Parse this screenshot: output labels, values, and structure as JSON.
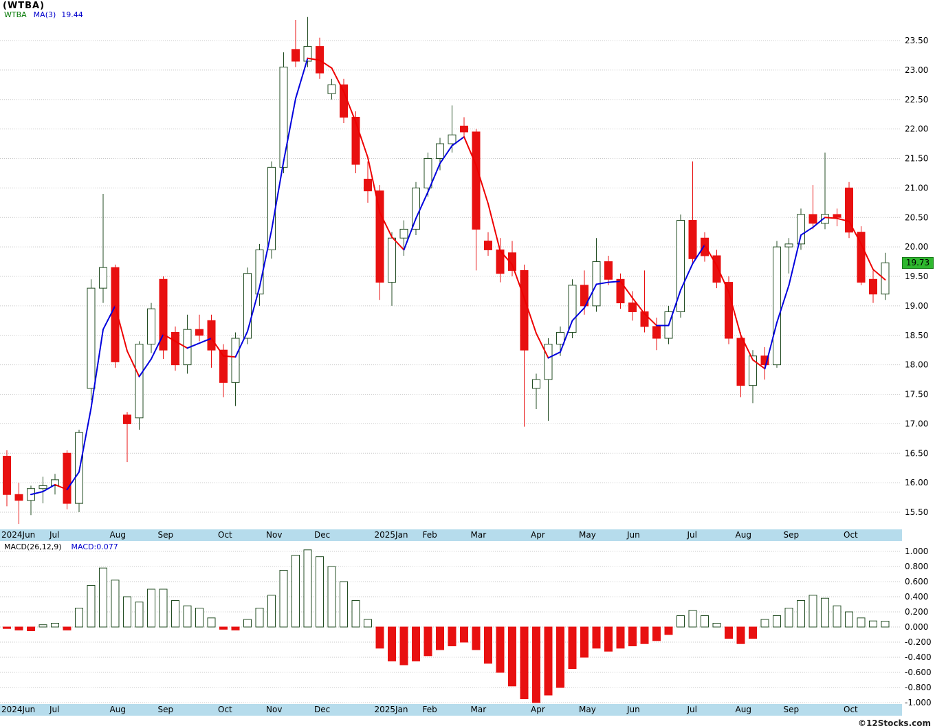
{
  "title": "(WTBA)",
  "legend": {
    "symbol": "WTBA",
    "ma": "MA(3)",
    "ma_value": "19.44"
  },
  "price_badge": "19.73",
  "macd_legend": {
    "label": "MACD(26,12,9)",
    "value": "MACD:0.077"
  },
  "footer": {
    "text": "©12Stocks.com"
  },
  "colors": {
    "up_outline": "#234d23",
    "down": "#e81010",
    "ma_rising": "#0000dd",
    "ma_falling": "#ee0000",
    "grid": "#c8c8c8",
    "axis_band": "#b6dcec",
    "badge_bg": "#2eb82e",
    "legend_symbol": "#007700",
    "legend_value": "#0000cc"
  },
  "chart_data": {
    "type": "candlestick",
    "symbol": "WTBA",
    "interval": "weekly",
    "ma_period": 3,
    "ma_last": 19.44,
    "last_close": 19.73,
    "macd_params": "26,12,9",
    "macd_last": 0.077,
    "price_axis_ticks": [
      23.5,
      23.0,
      22.5,
      22.0,
      21.5,
      21.0,
      20.5,
      20.0,
      19.5,
      19.0,
      18.5,
      18.0,
      17.5,
      17.0,
      16.5,
      16.0,
      15.5
    ],
    "macd_axis_ticks": [
      1.0,
      0.8,
      0.6,
      0.4,
      0.2,
      0.0,
      -0.2,
      -0.4,
      -0.6,
      -0.8,
      -1.0
    ],
    "months": [
      {
        "label": "2024Jun",
        "week": 0
      },
      {
        "label": "Jul",
        "week": 4
      },
      {
        "label": "Aug",
        "week": 9
      },
      {
        "label": "Sep",
        "week": 13
      },
      {
        "label": "Oct",
        "week": 18
      },
      {
        "label": "Nov",
        "week": 22
      },
      {
        "label": "Dec",
        "week": 26
      },
      {
        "label": "2025Jan",
        "week": 31
      },
      {
        "label": "Feb",
        "week": 35
      },
      {
        "label": "Mar",
        "week": 39
      },
      {
        "label": "Apr",
        "week": 44
      },
      {
        "label": "May",
        "week": 48
      },
      {
        "label": "Jun",
        "week": 52
      },
      {
        "label": "Jul",
        "week": 57
      },
      {
        "label": "Aug",
        "week": 61
      },
      {
        "label": "Sep",
        "week": 65
      },
      {
        "label": "Oct",
        "week": 70
      }
    ],
    "candles": [
      [
        16.45,
        16.55,
        15.6,
        15.8
      ],
      [
        15.8,
        16.0,
        15.3,
        15.7
      ],
      [
        15.7,
        15.95,
        15.45,
        15.9
      ],
      [
        15.9,
        16.1,
        15.65,
        15.95
      ],
      [
        15.95,
        16.15,
        15.8,
        16.05
      ],
      [
        16.5,
        16.55,
        15.55,
        15.65
      ],
      [
        15.65,
        16.9,
        15.5,
        16.85
      ],
      [
        17.6,
        19.45,
        17.4,
        19.3
      ],
      [
        19.3,
        20.9,
        19.05,
        19.65
      ],
      [
        19.65,
        19.7,
        17.95,
        18.05
      ],
      [
        17.15,
        17.2,
        16.35,
        17.0
      ],
      [
        17.1,
        18.4,
        16.9,
        18.35
      ],
      [
        18.35,
        19.05,
        18.2,
        18.95
      ],
      [
        19.45,
        19.5,
        18.1,
        18.25
      ],
      [
        18.55,
        18.65,
        17.9,
        18.0
      ],
      [
        18.0,
        18.85,
        17.85,
        18.6
      ],
      [
        18.6,
        18.85,
        18.4,
        18.5
      ],
      [
        18.75,
        18.85,
        17.95,
        18.25
      ],
      [
        18.25,
        18.35,
        17.45,
        17.7
      ],
      [
        17.7,
        18.55,
        17.3,
        18.45
      ],
      [
        18.45,
        19.65,
        18.35,
        19.55
      ],
      [
        19.2,
        20.05,
        19.0,
        19.95
      ],
      [
        19.95,
        21.45,
        19.8,
        21.35
      ],
      [
        21.35,
        23.3,
        21.25,
        23.05
      ],
      [
        23.35,
        23.85,
        23.05,
        23.15
      ],
      [
        23.15,
        23.9,
        23.05,
        23.4
      ],
      [
        23.4,
        23.55,
        22.85,
        22.95
      ],
      [
        22.6,
        22.85,
        22.5,
        22.75
      ],
      [
        22.75,
        22.85,
        22.1,
        22.2
      ],
      [
        22.2,
        22.3,
        21.25,
        21.4
      ],
      [
        21.15,
        21.45,
        20.75,
        20.95
      ],
      [
        20.95,
        21.05,
        19.1,
        19.4
      ],
      [
        19.4,
        20.25,
        19.0,
        20.15
      ],
      [
        20.15,
        20.45,
        19.85,
        20.3
      ],
      [
        20.3,
        21.1,
        20.2,
        21.0
      ],
      [
        21.0,
        21.6,
        20.85,
        21.5
      ],
      [
        21.5,
        21.85,
        21.3,
        21.75
      ],
      [
        21.75,
        22.4,
        21.6,
        21.9
      ],
      [
        22.05,
        22.2,
        21.85,
        21.95
      ],
      [
        21.95,
        22.0,
        19.6,
        20.3
      ],
      [
        20.1,
        20.25,
        19.85,
        19.95
      ],
      [
        19.95,
        20.15,
        19.4,
        19.55
      ],
      [
        19.9,
        20.1,
        19.5,
        19.6
      ],
      [
        19.6,
        19.7,
        16.95,
        18.25
      ],
      [
        17.6,
        17.85,
        17.25,
        17.75
      ],
      [
        17.75,
        18.45,
        17.05,
        18.35
      ],
      [
        18.35,
        18.65,
        18.15,
        18.55
      ],
      [
        18.55,
        19.45,
        18.45,
        19.35
      ],
      [
        19.35,
        19.6,
        18.85,
        19.0
      ],
      [
        19.0,
        20.15,
        18.9,
        19.75
      ],
      [
        19.75,
        19.85,
        19.35,
        19.45
      ],
      [
        19.45,
        19.55,
        18.95,
        19.05
      ],
      [
        19.05,
        19.25,
        18.75,
        18.9
      ],
      [
        18.9,
        19.6,
        18.55,
        18.65
      ],
      [
        18.65,
        18.8,
        18.25,
        18.45
      ],
      [
        18.45,
        19.0,
        18.35,
        18.9
      ],
      [
        18.9,
        20.55,
        18.8,
        20.45
      ],
      [
        20.45,
        21.45,
        19.7,
        19.8
      ],
      [
        20.15,
        20.25,
        19.75,
        19.85
      ],
      [
        19.85,
        19.95,
        19.3,
        19.4
      ],
      [
        19.4,
        19.5,
        18.35,
        18.45
      ],
      [
        18.45,
        18.55,
        17.45,
        17.65
      ],
      [
        17.65,
        18.25,
        17.35,
        18.15
      ],
      [
        18.15,
        18.3,
        17.75,
        18.0
      ],
      [
        18.0,
        20.1,
        17.95,
        20.0
      ],
      [
        20.0,
        20.15,
        19.55,
        20.05
      ],
      [
        20.05,
        20.65,
        19.95,
        20.55
      ],
      [
        20.55,
        21.05,
        20.3,
        20.4
      ],
      [
        20.4,
        21.6,
        20.3,
        20.55
      ],
      [
        20.55,
        20.65,
        20.35,
        20.5
      ],
      [
        21.0,
        21.1,
        20.15,
        20.25
      ],
      [
        20.25,
        20.35,
        19.35,
        19.4
      ],
      [
        19.45,
        19.6,
        19.05,
        19.2
      ],
      [
        19.2,
        19.9,
        19.1,
        19.73
      ]
    ],
    "macd_hist": [
      -0.02,
      -0.04,
      -0.05,
      0.03,
      0.05,
      -0.04,
      0.25,
      0.55,
      0.78,
      0.62,
      0.4,
      0.33,
      0.5,
      0.5,
      0.35,
      0.28,
      0.25,
      0.12,
      -0.03,
      -0.04,
      0.1,
      0.25,
      0.42,
      0.75,
      0.95,
      1.02,
      0.93,
      0.8,
      0.6,
      0.35,
      0.1,
      -0.28,
      -0.45,
      -0.5,
      -0.45,
      -0.38,
      -0.3,
      -0.25,
      -0.2,
      -0.3,
      -0.48,
      -0.6,
      -0.78,
      -0.95,
      -1.0,
      -0.9,
      -0.8,
      -0.55,
      -0.4,
      -0.28,
      -0.32,
      -0.28,
      -0.25,
      -0.22,
      -0.18,
      -0.1,
      0.15,
      0.22,
      0.15,
      0.05,
      -0.15,
      -0.22,
      -0.15,
      0.1,
      0.15,
      0.25,
      0.35,
      0.42,
      0.38,
      0.28,
      0.2,
      0.12,
      0.08,
      0.077
    ]
  }
}
